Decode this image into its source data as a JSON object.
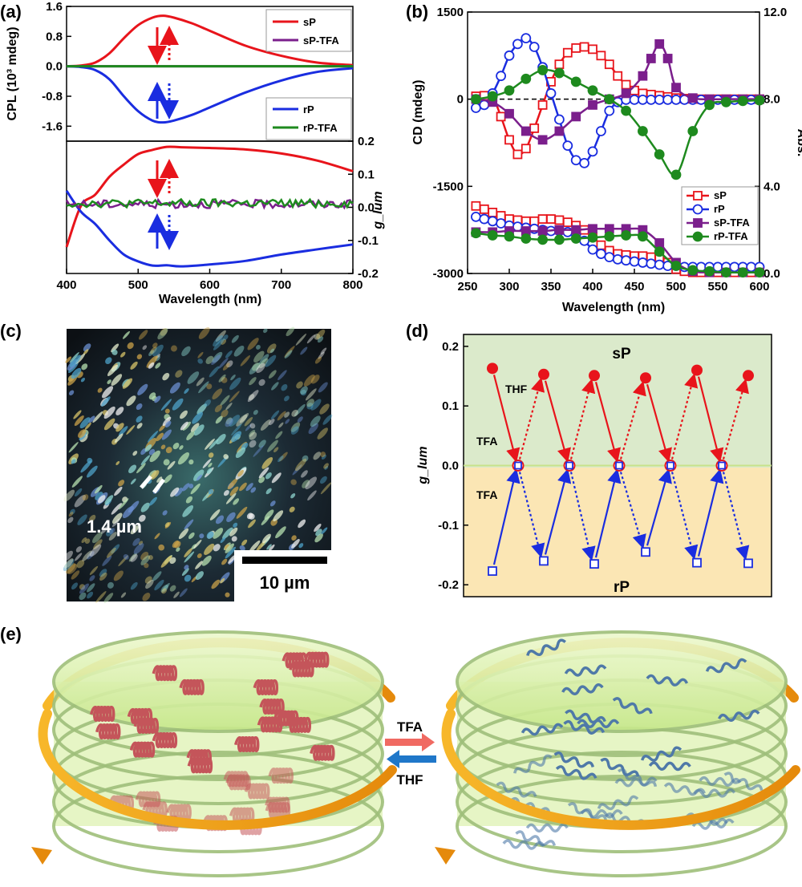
{
  "panels": {
    "a": "(a)",
    "b": "(b)",
    "c": "(c)",
    "d": "(d)",
    "e": "(e)"
  },
  "chart_data": [
    {
      "id": "a-top",
      "type": "line",
      "ylabel": "CPL (10³ mdeg)",
      "ylim": [
        -2.0,
        1.6
      ],
      "xlim": [
        400,
        800
      ],
      "yticks": [
        "1.6",
        "0.8",
        "0.0",
        "-0.8",
        "-1.6"
      ],
      "legend": [
        "sP",
        "sP-TFA",
        "rP",
        "rP-TFA"
      ],
      "series": [
        {
          "name": "sP",
          "color": "#e8141b",
          "x": [
            400,
            420,
            440,
            460,
            480,
            500,
            520,
            535,
            550,
            575,
            600,
            650,
            700,
            750,
            800
          ],
          "y": [
            0,
            0.02,
            0.1,
            0.35,
            0.75,
            1.1,
            1.3,
            1.35,
            1.3,
            1.15,
            0.95,
            0.55,
            0.28,
            0.1,
            0.03
          ]
        },
        {
          "name": "sP-TFA",
          "color": "#7b1f8c",
          "x": [
            400,
            800
          ],
          "y": [
            0,
            0
          ]
        },
        {
          "name": "rP",
          "color": "#1a2de0",
          "x": [
            400,
            420,
            440,
            460,
            480,
            500,
            520,
            535,
            550,
            575,
            600,
            650,
            700,
            750,
            800
          ],
          "y": [
            0,
            -0.02,
            -0.1,
            -0.35,
            -0.8,
            -1.2,
            -1.45,
            -1.5,
            -1.45,
            -1.3,
            -1.1,
            -0.7,
            -0.38,
            -0.15,
            -0.05
          ]
        },
        {
          "name": "rP-TFA",
          "color": "#1e8a1e",
          "x": [
            400,
            800
          ],
          "y": [
            0,
            0
          ]
        }
      ]
    },
    {
      "id": "a-bottom",
      "type": "line",
      "xlabel": "Wavelength (nm)",
      "ylabel": "g_lum",
      "ylim": [
        -0.2,
        0.2
      ],
      "xlim": [
        400,
        800
      ],
      "xticks": [
        "400",
        "500",
        "600",
        "700",
        "800"
      ],
      "yticks": [
        "0.2",
        "0.1",
        "0.0",
        "-0.1",
        "-0.2"
      ],
      "series": [
        {
          "name": "sP",
          "color": "#e8141b",
          "x": [
            400,
            420,
            440,
            460,
            480,
            500,
            520,
            540,
            560,
            600,
            650,
            700,
            750,
            800
          ],
          "y": [
            -0.12,
            0.005,
            0.04,
            0.09,
            0.13,
            0.16,
            0.175,
            0.18,
            0.182,
            0.18,
            0.175,
            0.16,
            0.14,
            0.11
          ]
        },
        {
          "name": "rP",
          "color": "#1a2de0",
          "x": [
            400,
            420,
            440,
            460,
            480,
            500,
            520,
            540,
            560,
            600,
            650,
            700,
            750,
            800
          ],
          "y": [
            0.05,
            -0.01,
            -0.05,
            -0.1,
            -0.14,
            -0.165,
            -0.175,
            -0.178,
            -0.176,
            -0.17,
            -0.16,
            -0.145,
            -0.13,
            -0.11
          ]
        },
        {
          "name": "sP-TFA",
          "color": "#7b1f8c",
          "x": [
            400,
            800
          ],
          "y": [
            0.01,
            0.01
          ]
        },
        {
          "name": "rP-TFA",
          "color": "#1e8a1e",
          "x": [
            400,
            800
          ],
          "y": [
            0.012,
            0.012
          ]
        }
      ]
    },
    {
      "id": "b",
      "type": "line",
      "xlabel": "Wavelength (nm)",
      "ylabel": "CD (mdeg)",
      "ylabel_right": "Abs.",
      "xlim": [
        250,
        600
      ],
      "ylim": [
        -3000,
        1500
      ],
      "ylim_right": [
        0,
        12
      ],
      "xticks": [
        "250",
        "300",
        "350",
        "400",
        "450",
        "500",
        "550",
        "600"
      ],
      "yticks": [
        "1500",
        "0",
        "-1500",
        "-3000"
      ],
      "yticks_right": [
        "12.0",
        "8.0",
        "4.0",
        "0.0"
      ],
      "legend": [
        "sP",
        "rP",
        "sP-TFA",
        "rP-TFA"
      ],
      "series": [
        {
          "name": "sP",
          "color": "#e8141b",
          "marker": "open-square",
          "x": [
            260,
            270,
            280,
            290,
            300,
            310,
            320,
            330,
            340,
            350,
            360,
            370,
            380,
            390,
            400,
            410,
            420,
            430,
            440,
            450,
            460,
            470,
            480,
            490,
            500,
            510,
            520,
            530,
            540,
            550,
            560,
            570,
            580,
            590,
            600
          ],
          "y": [
            50,
            60,
            40,
            -300,
            -700,
            -950,
            -850,
            -500,
            -100,
            300,
            600,
            800,
            880,
            900,
            860,
            750,
            600,
            400,
            250,
            150,
            100,
            80,
            60,
            40,
            20,
            10,
            5,
            0,
            0,
            0,
            0,
            0,
            0,
            0,
            0
          ]
        },
        {
          "name": "rP",
          "color": "#1a2de0",
          "marker": "open-circle",
          "x": [
            260,
            270,
            280,
            290,
            300,
            310,
            320,
            330,
            340,
            350,
            360,
            370,
            380,
            390,
            400,
            410,
            420,
            430,
            440,
            450,
            460,
            470,
            480,
            490,
            500,
            510,
            520,
            530,
            540,
            550,
            560,
            570,
            580,
            590,
            600
          ],
          "y": [
            -150,
            -100,
            100,
            400,
            750,
            950,
            1050,
            900,
            550,
            100,
            -350,
            -800,
            -1050,
            -1100,
            -900,
            -550,
            -200,
            -50,
            -10,
            -10,
            -10,
            -10,
            -10,
            -10,
            -10,
            -10,
            -10,
            -10,
            -10,
            -10,
            -10,
            -10,
            -10,
            -10,
            -10
          ]
        },
        {
          "name": "sP-TFA",
          "color": "#7b1f8c",
          "marker": "filled-square",
          "x": [
            260,
            280,
            300,
            320,
            340,
            360,
            380,
            400,
            420,
            440,
            460,
            470,
            480,
            490,
            500,
            520,
            540,
            560,
            580,
            600
          ],
          "y": [
            0,
            -50,
            -250,
            -550,
            -700,
            -550,
            -300,
            -100,
            0,
            100,
            400,
            700,
            950,
            700,
            200,
            20,
            0,
            0,
            0,
            0
          ],
          "x_plot": [
            260,
            280,
            300,
            320,
            340,
            360,
            380,
            400,
            420,
            440,
            460,
            470,
            480,
            490,
            500,
            520,
            540,
            560,
            580,
            600
          ]
        },
        {
          "name": "rP-TFA",
          "color": "#1e8a1e",
          "marker": "filled-circle",
          "x": [
            260,
            280,
            300,
            320,
            340,
            360,
            380,
            400,
            420,
            440,
            460,
            480,
            500,
            520,
            540,
            560,
            580,
            600
          ],
          "y": [
            0,
            50,
            150,
            350,
            500,
            450,
            300,
            150,
            0,
            -200,
            -550,
            -950,
            -1300,
            -550,
            -100,
            -50,
            -30,
            -20
          ]
        }
      ],
      "abs_series": [
        {
          "name": "sP",
          "color": "#e8141b",
          "marker": "open-square",
          "x": [
            260,
            270,
            280,
            290,
            300,
            310,
            320,
            330,
            340,
            350,
            360,
            370,
            380,
            390,
            400,
            410,
            420,
            430,
            440,
            450,
            460,
            470,
            480,
            490,
            500,
            510,
            520,
            530,
            540,
            550,
            560,
            570,
            580,
            590,
            600
          ],
          "y": [
            3.1,
            2.95,
            2.8,
            2.65,
            2.5,
            2.45,
            2.4,
            2.4,
            2.5,
            2.5,
            2.45,
            2.35,
            2.2,
            2.0,
            1.7,
            1.3,
            1.05,
            0.9,
            0.85,
            0.8,
            0.8,
            0.75,
            0.75,
            0.5,
            0.2,
            0.1,
            0.05,
            0.05,
            0.05,
            0.05,
            0.05,
            0.05,
            0.05,
            0.05,
            0.05
          ]
        },
        {
          "name": "rP",
          "color": "#1a2de0",
          "marker": "open-circle",
          "x": [
            260,
            270,
            280,
            290,
            300,
            310,
            320,
            330,
            340,
            350,
            360,
            370,
            380,
            390,
            400,
            410,
            420,
            430,
            440,
            450,
            460,
            470,
            480,
            490,
            500,
            510,
            520,
            530,
            540,
            550,
            560,
            570,
            580,
            590,
            600
          ],
          "y": [
            2.6,
            2.5,
            2.4,
            2.3,
            2.2,
            2.15,
            2.1,
            2.05,
            2.0,
            1.95,
            1.95,
            1.9,
            1.8,
            1.5,
            1.1,
            0.9,
            0.75,
            0.65,
            0.6,
            0.55,
            0.5,
            0.45,
            0.4,
            0.35,
            0.35,
            0.3,
            0.3,
            0.3,
            0.3,
            0.3,
            0.3,
            0.3,
            0.3,
            0.3,
            0.3
          ]
        },
        {
          "name": "sP-TFA",
          "color": "#7b1f8c",
          "marker": "filled-square",
          "x": [
            260,
            280,
            300,
            320,
            340,
            360,
            380,
            400,
            420,
            440,
            460,
            480,
            500,
            520,
            540,
            560,
            580,
            600
          ],
          "y": [
            1.9,
            1.9,
            1.95,
            1.95,
            1.95,
            2.0,
            2.0,
            2.05,
            2.05,
            2.05,
            2.0,
            1.4,
            0.5,
            0.1,
            0.05,
            0.05,
            0.05,
            0.05
          ]
        },
        {
          "name": "rP-TFA",
          "color": "#1e8a1e",
          "marker": "filled-circle",
          "x": [
            260,
            280,
            300,
            320,
            340,
            360,
            380,
            400,
            420,
            440,
            460,
            480,
            500,
            520,
            540,
            560,
            580,
            600
          ],
          "y": [
            1.85,
            1.75,
            1.7,
            1.6,
            1.55,
            1.55,
            1.6,
            1.65,
            1.7,
            1.75,
            1.7,
            1.0,
            0.35,
            0.15,
            0.1,
            0.05,
            0.05,
            0.05
          ]
        }
      ]
    },
    {
      "id": "d",
      "type": "scatter",
      "ylabel": "g_lum",
      "ylim": [
        -0.22,
        0.22
      ],
      "yticks": [
        "0.2",
        "0.1",
        "0.0",
        "-0.1",
        "-0.2"
      ],
      "region_top": "sP",
      "region_bottom": "rP",
      "annotations": [
        "THF",
        "TFA",
        "TFA"
      ],
      "cycles_x": [
        1,
        2,
        3,
        4,
        5,
        6
      ],
      "sP_values": [
        0.163,
        0.153,
        0.151,
        0.147,
        0.16,
        0.151
      ],
      "zero_values": [
        0,
        0,
        0,
        0,
        0
      ],
      "rP_values": [
        -0.177,
        -0.16,
        -0.165,
        -0.145,
        -0.163,
        -0.164
      ]
    }
  ],
  "micrograph": {
    "label_spacing": "1.4 µm",
    "scale_bar": "10 µm"
  },
  "scheme": {
    "arrow_top": "TFA",
    "arrow_bottom": "THF"
  },
  "colors": {
    "sP": "#e8141b",
    "rP": "#1a2de0",
    "sP-TFA": "#7b1f8c",
    "rP-TFA": "#1e8a1e",
    "region_top": "#dbeacb",
    "region_bottom": "#fbe6b4",
    "ring": "#f3a21b",
    "disk": "#d8f0a6"
  }
}
